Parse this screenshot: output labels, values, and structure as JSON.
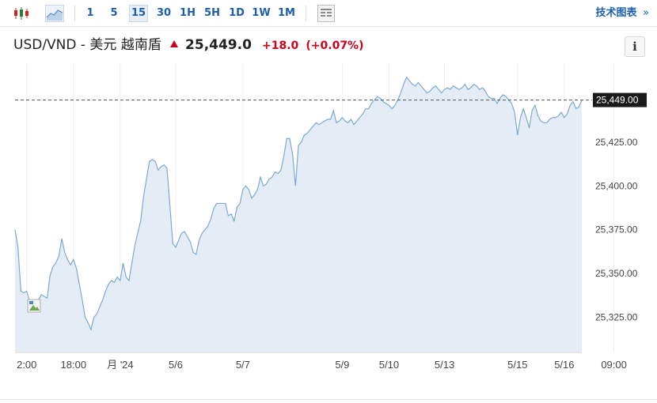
{
  "toolbar": {
    "candlestick_icon": "candlestick-icon",
    "area_icon": "area-chart-icon",
    "periods": [
      "1",
      "5",
      "15",
      "30",
      "1H",
      "5H",
      "1D",
      "1W",
      "1M"
    ],
    "active_period": "15",
    "table_icon": "table-icon",
    "tech_chart_label": "技术图表",
    "tech_chart_chevron": "»"
  },
  "header": {
    "pair": "USD/VND - 美元 越南盾",
    "price": "25,449.0",
    "change": "+18.0",
    "change_pct": "(+0.07%)",
    "direction_icon": "up-arrow-icon",
    "info_label": "i"
  },
  "colors": {
    "accent": "#1d5fae",
    "up": "#d0021b",
    "line": "#7fa9d1",
    "fill": "#e4edf6"
  },
  "chart_data": {
    "type": "area",
    "last_value_label": "25,449.00",
    "last_value": 25449,
    "ylim": [
      25305,
      25470
    ],
    "y_ticks": [
      {
        "value": 25425,
        "label": "25,425.00"
      },
      {
        "value": 25400,
        "label": "25,400.00"
      },
      {
        "value": 25375,
        "label": "25,375.00"
      },
      {
        "value": 25350,
        "label": "25,350.00"
      },
      {
        "value": 25325,
        "label": "25,325.00"
      }
    ],
    "x_ticks": [
      {
        "index": 4,
        "label": "2:00"
      },
      {
        "index": 20,
        "label": "18:00"
      },
      {
        "index": 36,
        "label": "月 '24"
      },
      {
        "index": 55,
        "label": "5/6"
      },
      {
        "index": 78,
        "label": "5/7"
      },
      {
        "index": 112,
        "label": "5/9"
      },
      {
        "index": 128,
        "label": "5/10"
      },
      {
        "index": 147,
        "label": "5/13"
      },
      {
        "index": 172,
        "label": "5/15"
      },
      {
        "index": 188,
        "label": "5/16"
      },
      {
        "index": 205,
        "label": "09:00"
      }
    ],
    "grid": "vertical",
    "values": [
      25375,
      25365,
      25340,
      25339,
      25340,
      25334,
      25332,
      25333,
      25335,
      25338,
      25337,
      25336,
      25349,
      25354,
      25356,
      25360,
      25370,
      25362,
      25358,
      25355,
      25358,
      25353,
      25344,
      25335,
      25325,
      25322,
      25318,
      25325,
      25327,
      25331,
      25335,
      25340,
      25344,
      25346,
      25345,
      25348,
      25346,
      25356,
      25348,
      25346,
      25356,
      25366,
      25373,
      25380,
      25394,
      25404,
      25414,
      25415,
      25414,
      25409,
      25411,
      25412,
      25410,
      25389,
      25367,
      25365,
      25369,
      25373,
      25374,
      25371,
      25368,
      25362,
      25361,
      25369,
      25373,
      25375,
      25377,
      25381,
      25387,
      25390,
      25390,
      25390,
      25390,
      25383,
      25384,
      25380,
      25388,
      25390,
      25398,
      25400,
      25398,
      25393,
      25395,
      25398,
      25405,
      25400,
      25401,
      25404,
      25405,
      25408,
      25407,
      25409,
      25417,
      25427,
      25427,
      25418,
      25400,
      25423,
      25425,
      25429,
      25430,
      25432,
      25434,
      25436,
      25435,
      25436,
      25437,
      25438,
      25438,
      25443,
      25436,
      25437,
      25439,
      25437,
      25436,
      25438,
      25435,
      25437,
      25439,
      25441,
      25444,
      25444,
      25447,
      25449,
      25451,
      25450,
      25448,
      25447,
      25446,
      25444,
      25446,
      25449,
      25453,
      25458,
      25462,
      25460,
      25458,
      25457,
      25459,
      25457,
      25455,
      25453,
      25454,
      25456,
      25457,
      25455,
      25453,
      25455,
      25456,
      25455,
      25457,
      25456,
      25455,
      25456,
      25458,
      25455,
      25456,
      25458,
      25457,
      25455,
      25456,
      25454,
      25451,
      25450,
      25450,
      25447,
      25450,
      25452,
      25451,
      25449,
      25447,
      25442,
      25429,
      25439,
      25444,
      25439,
      25433,
      25443,
      25446,
      25440,
      25437,
      25436,
      25436,
      25438,
      25439,
      25439,
      25440,
      25442,
      25439,
      25441,
      25446,
      25448,
      25444,
      25445,
      25449
    ]
  }
}
